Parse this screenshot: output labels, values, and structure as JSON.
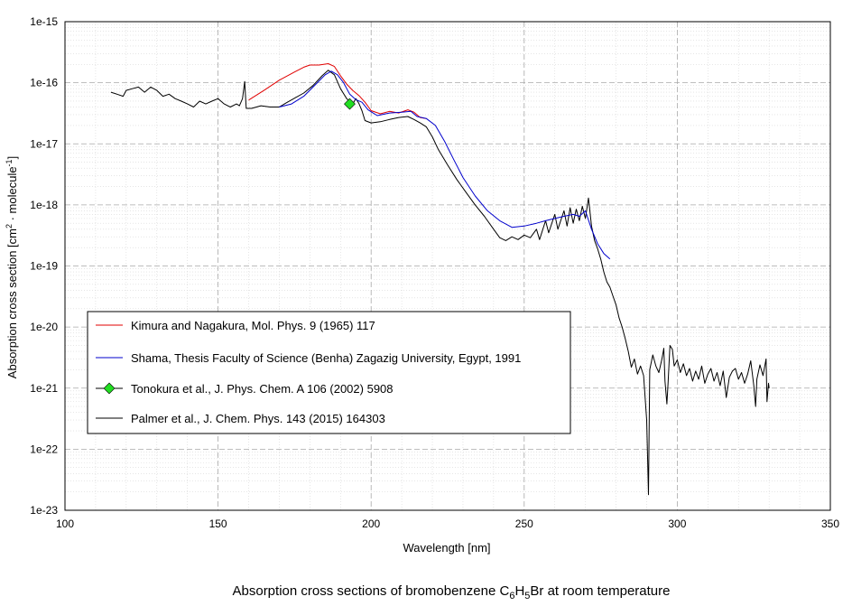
{
  "chart_data": {
    "type": "line",
    "caption": {
      "prefix": "Absorption cross sections of bromobenzene C",
      "sub1": "6",
      "mid": "H",
      "sub2": "5",
      "suffix": "Br at room temperature"
    },
    "xlabel": "Wavelength [nm]",
    "ylabel": {
      "prefix": "Absorption cross section [cm",
      "sup1": "2",
      "mid": " · molecule",
      "sup2": "-1",
      "suffix": "]"
    },
    "xlim": [
      100,
      350
    ],
    "ylim": [
      1e-23,
      1e-15
    ],
    "yscale": "log",
    "grid": true,
    "legend_position": "left-middle",
    "x_ticks": [
      "100",
      "150",
      "200",
      "250",
      "300",
      "350"
    ],
    "y_ticks": [
      "1e-15",
      "1e-16",
      "1e-17",
      "1e-18",
      "1e-19",
      "1e-20",
      "1e-21",
      "1e-22",
      "1e-23"
    ],
    "series": [
      {
        "name": "Kimura and Nagakura, Mol. Phys. 9 (1965) 117",
        "color": "#e00000",
        "marker": "none",
        "points": [
          [
            160,
            5.2e-17
          ],
          [
            165,
            7.5e-17
          ],
          [
            170,
            1.1e-16
          ],
          [
            175,
            1.5e-16
          ],
          [
            178,
            1.8e-16
          ],
          [
            180,
            1.95e-16
          ],
          [
            183,
            1.95e-16
          ],
          [
            186,
            2.05e-16
          ],
          [
            188,
            1.85e-16
          ],
          [
            190,
            1.3e-16
          ],
          [
            192,
            9.5e-17
          ],
          [
            194,
            7.5e-17
          ],
          [
            196,
            6.2e-17
          ],
          [
            198,
            4.8e-17
          ],
          [
            200,
            3.5e-17
          ],
          [
            203,
            3.1e-17
          ],
          [
            206,
            3.4e-17
          ],
          [
            209,
            3.2e-17
          ],
          [
            212,
            3.6e-17
          ],
          [
            214,
            3.3e-17
          ],
          [
            216,
            2.7e-17
          ],
          [
            218,
            2.6e-17
          ]
        ]
      },
      {
        "name": "Shama, Thesis Faculty of Science (Benha) Zagazig University, Egypt, 1991",
        "color": "#0000cc",
        "marker": "none",
        "points": [
          [
            170,
            4e-17
          ],
          [
            174,
            4.5e-17
          ],
          [
            178,
            6e-17
          ],
          [
            182,
            9.5e-17
          ],
          [
            185,
            1.35e-16
          ],
          [
            187,
            1.55e-16
          ],
          [
            189,
            1.35e-16
          ],
          [
            191,
            1e-16
          ],
          [
            193,
            6.5e-17
          ],
          [
            195,
            5.3e-17
          ],
          [
            197,
            4.8e-17
          ],
          [
            199,
            3.6e-17
          ],
          [
            202,
            2.9e-17
          ],
          [
            206,
            3.2e-17
          ],
          [
            210,
            3.3e-17
          ],
          [
            213,
            3.4e-17
          ],
          [
            215,
            2.8e-17
          ],
          [
            218,
            2.6e-17
          ],
          [
            221,
            2e-17
          ],
          [
            224,
            1.1e-17
          ],
          [
            227,
            5.5e-18
          ],
          [
            230,
            2.8e-18
          ],
          [
            234,
            1.4e-18
          ],
          [
            238,
            8e-19
          ],
          [
            242,
            5.5e-19
          ],
          [
            246,
            4.3e-19
          ],
          [
            250,
            4.5e-19
          ],
          [
            254,
            5e-19
          ],
          [
            257,
            5.5e-19
          ],
          [
            260,
            6e-19
          ],
          [
            263,
            6.5e-19
          ],
          [
            266,
            7e-19
          ],
          [
            268,
            6.5e-19
          ],
          [
            270,
            8e-19
          ],
          [
            272,
            4e-19
          ],
          [
            274,
            2.3e-19
          ],
          [
            276,
            1.6e-19
          ],
          [
            278,
            1.3e-19
          ]
        ]
      },
      {
        "name": "Tonokura et al., J. Phys. Chem. A 106 (2002) 5908",
        "color": "#000000",
        "marker": "diamond",
        "marker_color": "#22dd22",
        "points": [
          [
            193,
            4.5e-17
          ]
        ]
      },
      {
        "name": "Palmer et al., J. Chem. Phys. 143 (2015) 164303",
        "color": "#000000",
        "marker": "none",
        "points": [
          [
            115,
            7e-17
          ],
          [
            117,
            6.5e-17
          ],
          [
            119,
            6e-17
          ],
          [
            120,
            7.5e-17
          ],
          [
            122,
            8e-17
          ],
          [
            124,
            8.5e-17
          ],
          [
            126,
            7e-17
          ],
          [
            128,
            8.5e-17
          ],
          [
            130,
            7.5e-17
          ],
          [
            132,
            6e-17
          ],
          [
            134,
            6.5e-17
          ],
          [
            136,
            5.5e-17
          ],
          [
            138,
            5e-17
          ],
          [
            140,
            4.5e-17
          ],
          [
            142,
            4e-17
          ],
          [
            144,
            5e-17
          ],
          [
            146,
            4.5e-17
          ],
          [
            148,
            5e-17
          ],
          [
            150,
            5.5e-17
          ],
          [
            152,
            4.5e-17
          ],
          [
            154,
            4e-17
          ],
          [
            156,
            4.5e-17
          ],
          [
            157,
            4.2e-17
          ],
          [
            158,
            5.5e-17
          ],
          [
            158.7,
            1.05e-16
          ],
          [
            159.2,
            3.8e-17
          ],
          [
            161,
            3.8e-17
          ],
          [
            164,
            4.2e-17
          ],
          [
            167,
            4e-17
          ],
          [
            170,
            4e-17
          ],
          [
            172,
            4.6e-17
          ],
          [
            175,
            5.6e-17
          ],
          [
            178,
            6.8e-17
          ],
          [
            181,
            9e-17
          ],
          [
            184,
            1.3e-16
          ],
          [
            186,
            1.6e-16
          ],
          [
            188,
            1.35e-16
          ],
          [
            190,
            8e-17
          ],
          [
            192,
            5.5e-17
          ],
          [
            194,
            4.5e-17
          ],
          [
            195,
            5.5e-17
          ],
          [
            196,
            4.6e-17
          ],
          [
            197,
            3.5e-17
          ],
          [
            198,
            2.4e-17
          ],
          [
            200,
            2.2e-17
          ],
          [
            203,
            2.3e-17
          ],
          [
            206,
            2.5e-17
          ],
          [
            209,
            2.7e-17
          ],
          [
            212,
            2.8e-17
          ],
          [
            214,
            2.5e-17
          ],
          [
            216,
            2.2e-17
          ],
          [
            218,
            1.9e-17
          ],
          [
            220,
            1.3e-17
          ],
          [
            222,
            8e-18
          ],
          [
            225,
            4.5e-18
          ],
          [
            228,
            2.6e-18
          ],
          [
            231,
            1.6e-18
          ],
          [
            234,
            1e-18
          ],
          [
            237,
            6.5e-19
          ],
          [
            240,
            4e-19
          ],
          [
            242,
            2.9e-19
          ],
          [
            244,
            2.6e-19
          ],
          [
            246,
            3e-19
          ],
          [
            248,
            2.7e-19
          ],
          [
            250,
            3.2e-19
          ],
          [
            252,
            2.9e-19
          ],
          [
            254,
            4e-19
          ],
          [
            255,
            2.7e-19
          ],
          [
            257,
            5.5e-19
          ],
          [
            258,
            3.5e-19
          ],
          [
            260,
            7e-19
          ],
          [
            261,
            4e-19
          ],
          [
            263,
            8e-19
          ],
          [
            264,
            4.5e-19
          ],
          [
            265,
            9e-19
          ],
          [
            266,
            5e-19
          ],
          [
            267,
            8.5e-19
          ],
          [
            268,
            5.5e-19
          ],
          [
            269,
            9.5e-19
          ],
          [
            270,
            6e-19
          ],
          [
            271,
            1.3e-18
          ],
          [
            272,
            4.5e-19
          ],
          [
            273,
            2.6e-19
          ],
          [
            274,
            1.9e-19
          ],
          [
            275,
            1.3e-19
          ],
          [
            276,
            8e-20
          ],
          [
            277,
            5.5e-20
          ],
          [
            278,
            4.5e-20
          ],
          [
            279,
            3.2e-20
          ],
          [
            280,
            2.3e-20
          ],
          [
            281,
            1.4e-20
          ],
          [
            282,
            1e-20
          ],
          [
            283,
            6.5e-21
          ],
          [
            284,
            4e-21
          ],
          [
            285,
            2.2e-21
          ],
          [
            286,
            3e-21
          ],
          [
            287,
            1.7e-21
          ],
          [
            288,
            2.3e-21
          ],
          [
            289,
            1.6e-21
          ],
          [
            290,
            3e-22
          ],
          [
            290.6,
            1.8e-23
          ],
          [
            291,
            2e-21
          ],
          [
            292,
            3.5e-21
          ],
          [
            293,
            2.3e-21
          ],
          [
            294,
            1.8e-21
          ],
          [
            295,
            3e-21
          ],
          [
            295.6,
            4.5e-21
          ],
          [
            296,
            1.3e-21
          ],
          [
            296.6,
            5.5e-22
          ],
          [
            297,
            1.2e-21
          ],
          [
            297.6,
            5e-21
          ],
          [
            298.4,
            4.3e-21
          ],
          [
            299,
            2.3e-21
          ],
          [
            300,
            2.9e-21
          ],
          [
            301,
            1.8e-21
          ],
          [
            302,
            2.5e-21
          ],
          [
            303,
            1.6e-21
          ],
          [
            304,
            2.1e-21
          ],
          [
            305,
            1.3e-21
          ],
          [
            306,
            1.9e-21
          ],
          [
            307,
            1.4e-21
          ],
          [
            308,
            2.3e-21
          ],
          [
            309,
            1.2e-21
          ],
          [
            310,
            1.7e-21
          ],
          [
            311,
            2.1e-21
          ],
          [
            312,
            1.3e-21
          ],
          [
            313,
            1.8e-21
          ],
          [
            314,
            1.1e-21
          ],
          [
            315,
            1.9e-21
          ],
          [
            316,
            7e-22
          ],
          [
            317,
            1.5e-21
          ],
          [
            318,
            1.9e-21
          ],
          [
            319,
            2.1e-21
          ],
          [
            320,
            1.4e-21
          ],
          [
            321,
            1.8e-21
          ],
          [
            322,
            1.2e-21
          ],
          [
            323,
            1.7e-21
          ],
          [
            324,
            2.8e-21
          ],
          [
            325,
            1.1e-21
          ],
          [
            325.6,
            5e-22
          ],
          [
            326,
            1.4e-21
          ],
          [
            327,
            2.4e-21
          ],
          [
            328,
            1.6e-21
          ],
          [
            329,
            3e-21
          ],
          [
            329.3,
            6e-22
          ],
          [
            329.8,
            1.2e-21
          ],
          [
            330,
            1e-21
          ]
        ]
      }
    ]
  }
}
